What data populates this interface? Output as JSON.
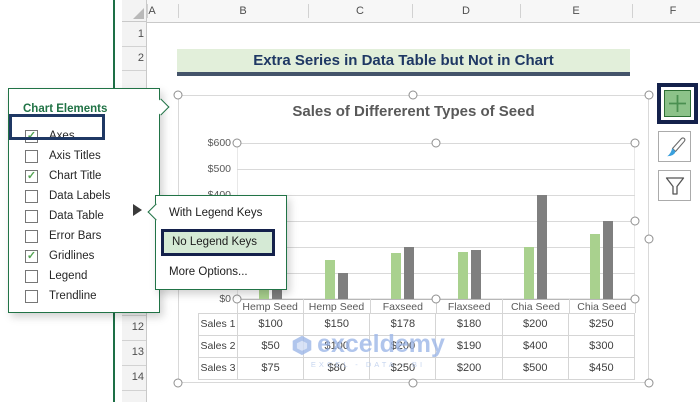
{
  "window": {
    "columns": [
      "A",
      "B",
      "C",
      "D",
      "E",
      "F"
    ],
    "rows": [
      "1",
      "2",
      "12",
      "13",
      "14"
    ]
  },
  "banner": {
    "text": "Extra Series in Data Table but Not in Chart"
  },
  "chart_elements_panel": {
    "title": "Chart Elements",
    "items": [
      {
        "label": "Axes",
        "checked": true,
        "highlighted": false
      },
      {
        "label": "Axis Titles",
        "checked": false,
        "highlighted": false
      },
      {
        "label": "Chart Title",
        "checked": true,
        "highlighted": false
      },
      {
        "label": "Data Labels",
        "checked": false,
        "highlighted": false
      },
      {
        "label": "Data Table",
        "checked": false,
        "highlighted": true
      },
      {
        "label": "Error Bars",
        "checked": false,
        "highlighted": false
      },
      {
        "label": "Gridlines",
        "checked": true,
        "highlighted": false
      },
      {
        "label": "Legend",
        "checked": false,
        "highlighted": false
      },
      {
        "label": "Trendline",
        "checked": false,
        "highlighted": false
      }
    ]
  },
  "submenu": {
    "items": [
      {
        "label": "With Legend Keys",
        "selected": false
      },
      {
        "label": "No Legend Keys",
        "selected": true
      },
      {
        "label": "More Options...",
        "selected": false
      }
    ]
  },
  "chart_tools": [
    {
      "name": "chart-elements-button",
      "icon": "plus-icon",
      "selected": true
    },
    {
      "name": "chart-styles-button",
      "icon": "brush-icon",
      "selected": false
    },
    {
      "name": "chart-filters-button",
      "icon": "funnel-icon",
      "selected": false
    }
  ],
  "chart_data": {
    "type": "bar",
    "title": "Sales of Differerent Types of Seed",
    "categories": [
      "Hemp Seed",
      "Hemp Seed",
      "Faxseed",
      "Flaxseed",
      "Chia Seed",
      "Chia Seed"
    ],
    "series": [
      {
        "name": "Sales 1",
        "values": [
          100,
          150,
          178,
          180,
          200,
          250
        ],
        "color": "#a9d18e",
        "in_chart": true
      },
      {
        "name": "Sales 2",
        "values": [
          50,
          100,
          200,
          190,
          400,
          300
        ],
        "color": "#7f7f7f",
        "in_chart": true
      },
      {
        "name": "Sales 3",
        "values": [
          75,
          80,
          250,
          200,
          500,
          450
        ],
        "color": null,
        "in_chart": false
      }
    ],
    "ylim": [
      0,
      600
    ],
    "ytick_step": 100,
    "ytick_labels": [
      "$600",
      "$500",
      "$400",
      "$300",
      "$200",
      "$100",
      "$0"
    ],
    "data_table_values": [
      [
        "$100",
        "$150",
        "$178",
        "$180",
        "$200",
        "$250"
      ],
      [
        "$50",
        "$100",
        "$200",
        "$190",
        "$400",
        "$300"
      ],
      [
        "$75",
        "$80",
        "$250",
        "$200",
        "$500",
        "$450"
      ]
    ],
    "gridlines": true,
    "legend": false
  },
  "watermark": {
    "brand": "exceldemy",
    "tagline": "EXCEL - DATA - BI"
  },
  "colors": {
    "excel_green": "#217346",
    "navy_highlight": "#1f3864",
    "banner_bg": "#e2efda",
    "banner_underline": "#44546a",
    "bar_green": "#a9d18e",
    "bar_gray": "#7f7f7f",
    "submenu_selected_bg": "#d5ead5",
    "watermark_blue": "#9db7e8"
  }
}
